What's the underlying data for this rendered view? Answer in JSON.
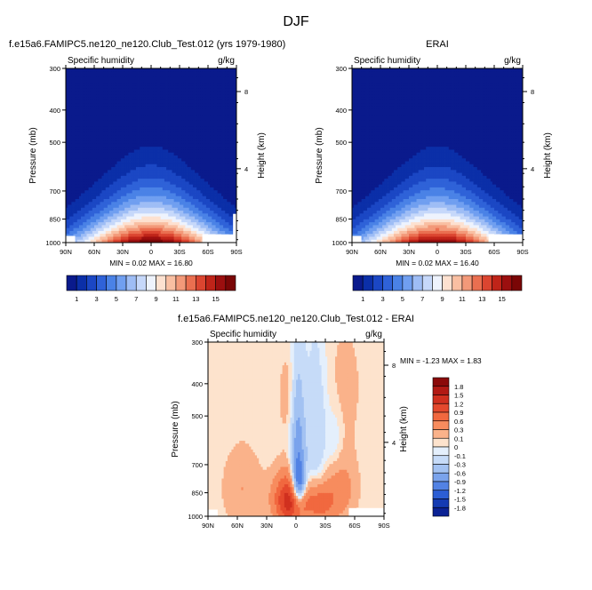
{
  "page_title": "DJF",
  "chart_data": [
    {
      "type": "heatmap",
      "title": "f.e15a6.FAMIPC5.ne120_ne120.Club_Test.012 (yrs 1979-1980)",
      "variable_label": "Specific humidity",
      "units_label": "g/kg",
      "ylabel": "Pressure (mb)",
      "ylabel_right": "Height (km)",
      "xticks": [
        "90N",
        "60N",
        "30N",
        "0",
        "30S",
        "60S",
        "90S"
      ],
      "yticks": [
        300,
        400,
        500,
        700,
        850,
        1000
      ],
      "yticks_right": [
        "8",
        "4"
      ],
      "y_scale": "log-pressure",
      "stats_text": "MIN =  0.02  MAX = 16.80",
      "min": 0.02,
      "max": 16.8,
      "colorbar_ticks": [
        "1",
        "3",
        "5",
        "7",
        "9",
        "11",
        "13",
        "15"
      ],
      "colorbar_colors": [
        "#0a1a8c",
        "#0b2fa8",
        "#1b47c4",
        "#2f62d8",
        "#4a82e6",
        "#709ff0",
        "#9ebdf5",
        "#c6d8fa",
        "#eef3fd",
        "#fde1d0",
        "#f9bfa2",
        "#f39979",
        "#ea6f50",
        "#db4530",
        "#bf2419",
        "#9b0f0f",
        "#7a0606"
      ]
    },
    {
      "type": "heatmap",
      "title": "ERAI",
      "variable_label": "Specific humidity",
      "units_label": "g/kg",
      "ylabel": "Pressure (mb)",
      "ylabel_right": "Height (km)",
      "xticks": [
        "90N",
        "60N",
        "30N",
        "0",
        "30S",
        "60S",
        "90S"
      ],
      "yticks": [
        300,
        400,
        500,
        700,
        850,
        1000
      ],
      "yticks_right": [
        "8",
        "4"
      ],
      "y_scale": "log-pressure",
      "stats_text": "MIN =  0.02  MAX = 16.40",
      "min": 0.02,
      "max": 16.4,
      "colorbar_ticks": [
        "1",
        "3",
        "5",
        "7",
        "9",
        "11",
        "13",
        "15"
      ],
      "colorbar_colors": [
        "#0a1a8c",
        "#0b2fa8",
        "#1b47c4",
        "#2f62d8",
        "#4a82e6",
        "#709ff0",
        "#9ebdf5",
        "#c6d8fa",
        "#eef3fd",
        "#fde1d0",
        "#f9bfa2",
        "#f39979",
        "#ea6f50",
        "#db4530",
        "#bf2419",
        "#9b0f0f",
        "#7a0606"
      ]
    },
    {
      "type": "heatmap",
      "title": "f.e15a6.FAMIPC5.ne120_ne120.Club_Test.012 - ERAI",
      "variable_label": "Specific humidity",
      "units_label": "g/kg",
      "ylabel": "Pressure (mb)",
      "ylabel_right": "Height (km)",
      "xticks": [
        "90N",
        "60N",
        "30N",
        "0",
        "30S",
        "60S",
        "90S"
      ],
      "yticks": [
        300,
        400,
        500,
        700,
        850,
        1000
      ],
      "yticks_right": [
        "8",
        "4"
      ],
      "y_scale": "log-pressure",
      "stats_text": "MIN = -1.23  MAX =  1.83",
      "min": -1.23,
      "max": 1.83,
      "colorbar_ticks": [
        "1.8",
        "1.5",
        "1.2",
        "0.9",
        "0.6",
        "0.3",
        "0.1",
        "0",
        "-0.1",
        "-0.3",
        "-0.6",
        "-0.9",
        "-1.2",
        "-1.5",
        "-1.8"
      ],
      "colorbar_colors": [
        "#8b0a0a",
        "#b21a14",
        "#d0301f",
        "#e4492d",
        "#f1683f",
        "#f78c5e",
        "#fab28a",
        "#fde3cd",
        "#e4effc",
        "#c6dbf8",
        "#a3c2f2",
        "#7aa3ec",
        "#5282e4",
        "#2c5ed4",
        "#143bb2",
        "#0b2294"
      ]
    }
  ]
}
